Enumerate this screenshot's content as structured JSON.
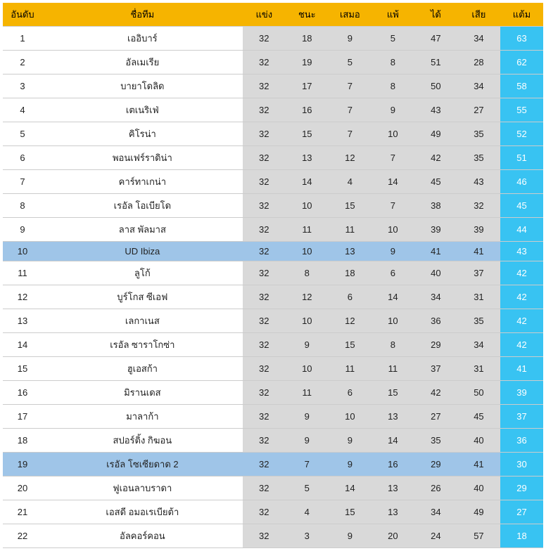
{
  "colors": {
    "header_bg": "#f6b400",
    "header_text": "#000000",
    "odd_bg": "#ffffff",
    "even_bg": "#d9d9d9",
    "highlight_bg": "#9fc5e8",
    "points_bg": "#38c3f2",
    "points_text": "#ffffff",
    "border": "#cccccc",
    "text": "#222222"
  },
  "columns": [
    {
      "key": "rank",
      "label": "อันดับ",
      "class": "col-rank"
    },
    {
      "key": "team",
      "label": "ชื่อทีม",
      "class": "col-team"
    },
    {
      "key": "played",
      "label": "แข่ง",
      "class": "col-stat"
    },
    {
      "key": "win",
      "label": "ชนะ",
      "class": "col-stat"
    },
    {
      "key": "draw",
      "label": "เสมอ",
      "class": "col-stat"
    },
    {
      "key": "lose",
      "label": "แพ้",
      "class": "col-stat"
    },
    {
      "key": "gf",
      "label": "ได้",
      "class": "col-stat"
    },
    {
      "key": "ga",
      "label": "เสีย",
      "class": "col-stat"
    },
    {
      "key": "pts",
      "label": "แต้ม",
      "class": "col-pts"
    }
  ],
  "rows": [
    {
      "rank": 1,
      "team": "เออิบาร์",
      "played": 32,
      "win": 18,
      "draw": 9,
      "lose": 5,
      "gf": 47,
      "ga": 34,
      "pts": 63,
      "highlight": false
    },
    {
      "rank": 2,
      "team": "อัลเมเรีย",
      "played": 32,
      "win": 19,
      "draw": 5,
      "lose": 8,
      "gf": 51,
      "ga": 28,
      "pts": 62,
      "highlight": false
    },
    {
      "rank": 3,
      "team": "บายาโดลิด",
      "played": 32,
      "win": 17,
      "draw": 7,
      "lose": 8,
      "gf": 50,
      "ga": 34,
      "pts": 58,
      "highlight": false
    },
    {
      "rank": 4,
      "team": "เตเนริเฟ่",
      "played": 32,
      "win": 16,
      "draw": 7,
      "lose": 9,
      "gf": 43,
      "ga": 27,
      "pts": 55,
      "highlight": false
    },
    {
      "rank": 5,
      "team": "คิโรน่า",
      "played": 32,
      "win": 15,
      "draw": 7,
      "lose": 10,
      "gf": 49,
      "ga": 35,
      "pts": 52,
      "highlight": false
    },
    {
      "rank": 6,
      "team": "พอนเฟร์ราดิน่า",
      "played": 32,
      "win": 13,
      "draw": 12,
      "lose": 7,
      "gf": 42,
      "ga": 35,
      "pts": 51,
      "highlight": false
    },
    {
      "rank": 7,
      "team": "คาร์ทาเกน่า",
      "played": 32,
      "win": 14,
      "draw": 4,
      "lose": 14,
      "gf": 45,
      "ga": 43,
      "pts": 46,
      "highlight": false
    },
    {
      "rank": 8,
      "team": "เรอัล โอเบียโด",
      "played": 32,
      "win": 10,
      "draw": 15,
      "lose": 7,
      "gf": 38,
      "ga": 32,
      "pts": 45,
      "highlight": false
    },
    {
      "rank": 9,
      "team": "ลาส พัลมาส",
      "played": 32,
      "win": 11,
      "draw": 11,
      "lose": 10,
      "gf": 39,
      "ga": 39,
      "pts": 44,
      "highlight": false
    },
    {
      "rank": 10,
      "team": "UD Ibiza",
      "played": 32,
      "win": 10,
      "draw": 13,
      "lose": 9,
      "gf": 41,
      "ga": 41,
      "pts": 43,
      "highlight": true
    },
    {
      "rank": 11,
      "team": "ลูโก้",
      "played": 32,
      "win": 8,
      "draw": 18,
      "lose": 6,
      "gf": 40,
      "ga": 37,
      "pts": 42,
      "highlight": false
    },
    {
      "rank": 12,
      "team": "บูร์โกส ซีเอฟ",
      "played": 32,
      "win": 12,
      "draw": 6,
      "lose": 14,
      "gf": 34,
      "ga": 31,
      "pts": 42,
      "highlight": false
    },
    {
      "rank": 13,
      "team": "เลกาเนส",
      "played": 32,
      "win": 10,
      "draw": 12,
      "lose": 10,
      "gf": 36,
      "ga": 35,
      "pts": 42,
      "highlight": false
    },
    {
      "rank": 14,
      "team": "เรอัล ซาราโกซ่า",
      "played": 32,
      "win": 9,
      "draw": 15,
      "lose": 8,
      "gf": 29,
      "ga": 34,
      "pts": 42,
      "highlight": false
    },
    {
      "rank": 15,
      "team": "ฮูเอสก้า",
      "played": 32,
      "win": 10,
      "draw": 11,
      "lose": 11,
      "gf": 37,
      "ga": 31,
      "pts": 41,
      "highlight": false
    },
    {
      "rank": 16,
      "team": "มิรานเดส",
      "played": 32,
      "win": 11,
      "draw": 6,
      "lose": 15,
      "gf": 42,
      "ga": 50,
      "pts": 39,
      "highlight": false
    },
    {
      "rank": 17,
      "team": "มาลาก้า",
      "played": 32,
      "win": 9,
      "draw": 10,
      "lose": 13,
      "gf": 27,
      "ga": 45,
      "pts": 37,
      "highlight": false
    },
    {
      "rank": 18,
      "team": "สปอร์ติ้ง กิฆอน",
      "played": 32,
      "win": 9,
      "draw": 9,
      "lose": 14,
      "gf": 35,
      "ga": 40,
      "pts": 36,
      "highlight": false
    },
    {
      "rank": 19,
      "team": "เรอัล โซเซียดาด 2",
      "played": 32,
      "win": 7,
      "draw": 9,
      "lose": 16,
      "gf": 29,
      "ga": 41,
      "pts": 30,
      "highlight": true
    },
    {
      "rank": 20,
      "team": "ฟูเอนลาบราดา",
      "played": 32,
      "win": 5,
      "draw": 14,
      "lose": 13,
      "gf": 26,
      "ga": 40,
      "pts": 29,
      "highlight": false
    },
    {
      "rank": 21,
      "team": "เอสดี อมอเรเบียต้า",
      "played": 32,
      "win": 4,
      "draw": 15,
      "lose": 13,
      "gf": 34,
      "ga": 49,
      "pts": 27,
      "highlight": false
    },
    {
      "rank": 22,
      "team": "อัลคอร์คอน",
      "played": 32,
      "win": 3,
      "draw": 9,
      "lose": 20,
      "gf": 24,
      "ga": 57,
      "pts": 18,
      "highlight": false
    }
  ]
}
